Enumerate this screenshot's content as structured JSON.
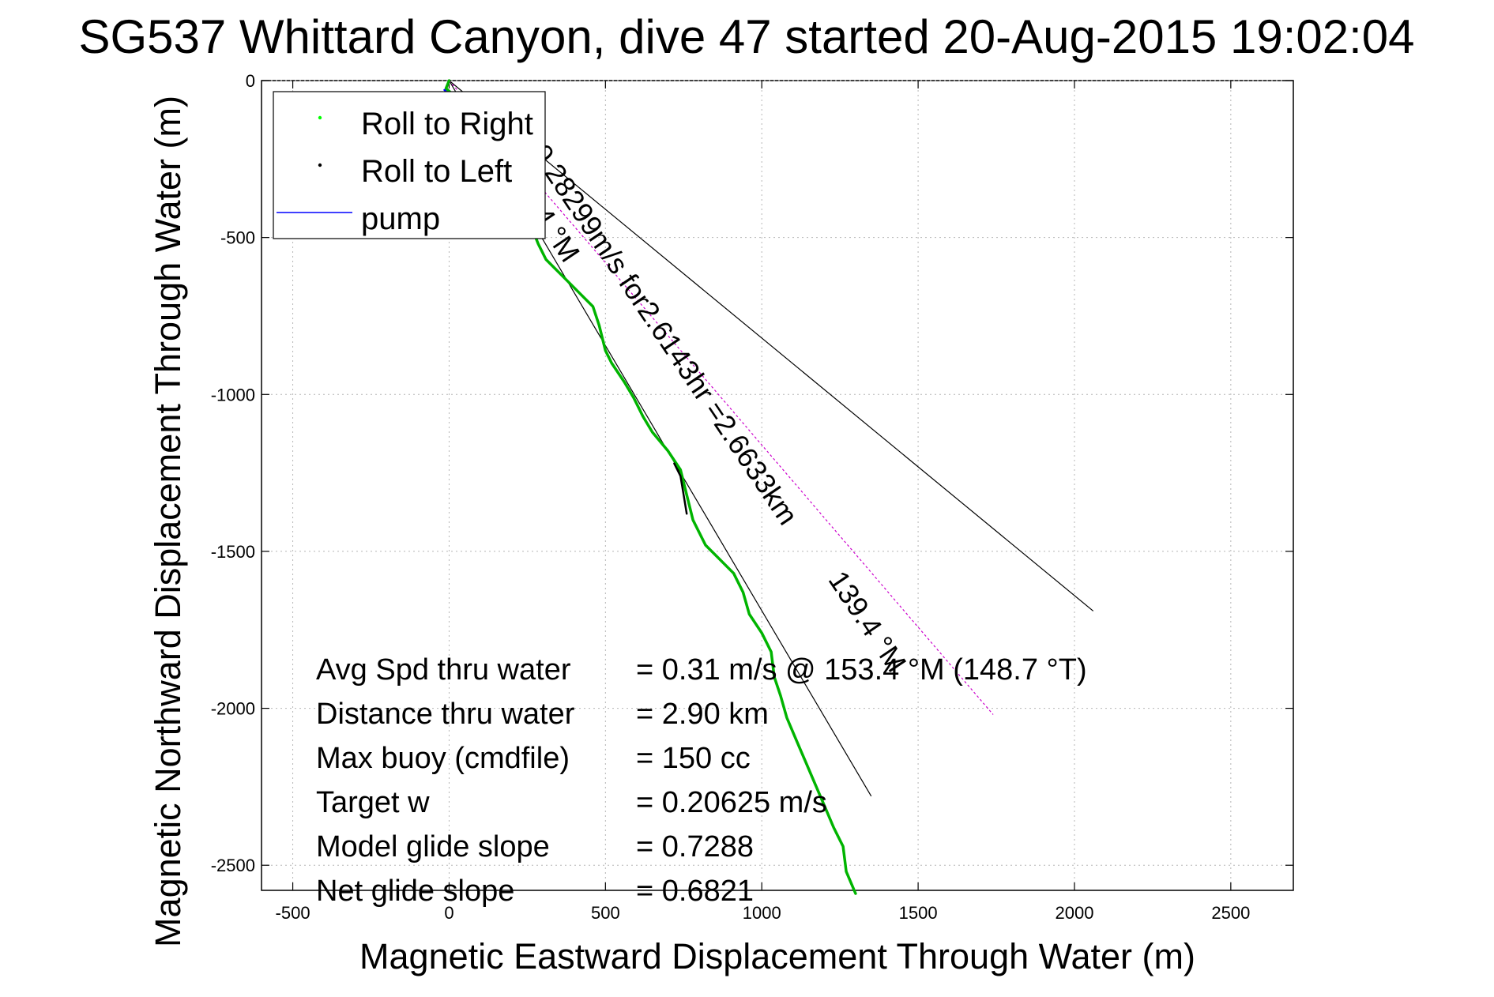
{
  "chart_data": {
    "type": "line",
    "title": "SG537 Whittard Canyon, dive 47 started 20-Aug-2015 19:02:04",
    "xlabel": "Magnetic Eastward Displacement Through Water (m)",
    "ylabel": "Magnetic Northward Displacement Through Water (m)",
    "xlim": [
      -600,
      2700
    ],
    "ylim": [
      -2580,
      0
    ],
    "xticks": [
      -500,
      0,
      500,
      1000,
      1500,
      2000,
      2500
    ],
    "yticks": [
      0,
      -500,
      -1000,
      -1500,
      -2000,
      -2500
    ],
    "grid": true,
    "legend": {
      "placement": "top-left",
      "entries": [
        {
          "label": "Roll to Right",
          "color": "#00ff00",
          "style": "dot"
        },
        {
          "label": "Roll to Left",
          "color": "#000000",
          "style": "dot"
        },
        {
          "label": "pump",
          "color": "#0000ff",
          "style": "line"
        }
      ]
    },
    "series": [
      {
        "name": "Roll to Right",
        "color": "#00b400",
        "points": [
          [
            0,
            0
          ],
          [
            -10,
            -25
          ],
          [
            30,
            -60
          ],
          [
            80,
            -120
          ],
          [
            110,
            -170
          ],
          [
            150,
            -240
          ],
          [
            200,
            -330
          ],
          [
            240,
            -410
          ],
          [
            265,
            -470
          ],
          [
            285,
            -520
          ],
          [
            310,
            -570
          ],
          [
            360,
            -620
          ],
          [
            420,
            -680
          ],
          [
            460,
            -720
          ],
          [
            480,
            -780
          ],
          [
            500,
            -860
          ],
          [
            520,
            -900
          ],
          [
            560,
            -960
          ],
          [
            590,
            -1010
          ],
          [
            620,
            -1070
          ],
          [
            650,
            -1120
          ],
          [
            700,
            -1180
          ],
          [
            740,
            -1240
          ],
          [
            760,
            -1320
          ],
          [
            780,
            -1400
          ],
          [
            820,
            -1480
          ],
          [
            870,
            -1530
          ],
          [
            910,
            -1570
          ],
          [
            940,
            -1630
          ],
          [
            960,
            -1700
          ],
          [
            1000,
            -1760
          ],
          [
            1030,
            -1820
          ],
          [
            1040,
            -1900
          ],
          [
            1060,
            -1960
          ],
          [
            1080,
            -2030
          ],
          [
            1110,
            -2100
          ],
          [
            1140,
            -2170
          ],
          [
            1170,
            -2240
          ],
          [
            1200,
            -2310
          ],
          [
            1230,
            -2380
          ],
          [
            1260,
            -2440
          ],
          [
            1270,
            -2520
          ],
          [
            1300,
            -2590
          ]
        ]
      },
      {
        "name": "Roll to Left",
        "color": "#000000",
        "points": [
          [
            720,
            -1220
          ],
          [
            740,
            -1260
          ],
          [
            750,
            -1320
          ],
          [
            760,
            -1380
          ]
        ]
      },
      {
        "name": "pump",
        "color": "#0000ff",
        "points": [
          [
            -15,
            -30
          ],
          [
            15,
            -60
          ]
        ]
      }
    ],
    "reference_lines": [
      {
        "from": [
          0,
          0
        ],
        "to": [
          2060,
          -1690
        ],
        "color": "#000000"
      },
      {
        "from": [
          0,
          0
        ],
        "to": [
          1350,
          -2280
        ],
        "color": "#000000"
      },
      {
        "from": [
          0,
          0
        ],
        "to": [
          1740,
          -2020
        ],
        "color": "#cc00cc",
        "dash": true
      }
    ],
    "annotations": [
      {
        "text": "0.28299m/s for2.6143hr =2.6633km",
        "at": [
          260,
          -230
        ],
        "rotate": 56
      },
      {
        "text": "139.4 °M",
        "at": [
          1210,
          -1590
        ],
        "rotate": 56
      },
      {
        "text": "4 °M",
        "at": [
          265,
          -430
        ],
        "rotate": 56
      }
    ],
    "stats": [
      {
        "label": "Avg Spd thru water",
        "value": "=  0.31 m/s @ 153.4 °M (148.7 °T)"
      },
      {
        "label": "Distance thru water",
        "value": "=  2.90 km"
      },
      {
        "label": "Max buoy (cmdfile)",
        "value": "= 150 cc"
      },
      {
        "label": "Target w",
        "value": "= 0.20625 m/s"
      },
      {
        "label": "Model glide slope",
        "value": "= 0.7288"
      },
      {
        "label": "Net glide slope",
        "value": "= 0.6821"
      }
    ]
  }
}
